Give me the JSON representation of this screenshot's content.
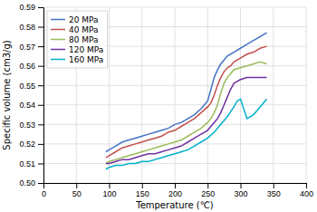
{
  "chart_data": {
    "type": "line",
    "xlabel": "Temperature (℃)",
    "ylabel": "Specific volume (cm3/g)",
    "xlim": [
      0,
      400
    ],
    "ylim": [
      0.5,
      0.59
    ],
    "xticks": [
      0,
      50,
      100,
      150,
      200,
      250,
      300,
      350,
      400
    ],
    "yticks": [
      {
        "value": 0.5,
        "label": "0.50"
      },
      0.51,
      0.52,
      0.53,
      0.54,
      0.55,
      0.56,
      0.57,
      0.58,
      0.59
    ],
    "grid": true,
    "legend": "upper-left",
    "series": [
      {
        "name": "20 MPa",
        "color": "#4472C4",
        "x": [
          95,
          100,
          110,
          120,
          130,
          140,
          150,
          160,
          170,
          180,
          190,
          200,
          210,
          220,
          230,
          240,
          250,
          255,
          260,
          265,
          270,
          275,
          280,
          290,
          300,
          310,
          320,
          330,
          340
        ],
        "values": [
          0.516,
          0.517,
          0.519,
          0.521,
          0.522,
          0.523,
          0.524,
          0.525,
          0.526,
          0.527,
          0.528,
          0.53,
          0.531,
          0.533,
          0.535,
          0.538,
          0.542,
          0.548,
          0.554,
          0.558,
          0.561,
          0.563,
          0.565,
          0.567,
          0.569,
          0.571,
          0.573,
          0.575,
          0.577
        ]
      },
      {
        "name": "40 MPa",
        "color": "#C0504D",
        "x": [
          95,
          100,
          110,
          120,
          130,
          140,
          150,
          160,
          170,
          180,
          190,
          200,
          210,
          220,
          230,
          240,
          250,
          255,
          260,
          265,
          270,
          275,
          280,
          285,
          290,
          300,
          310,
          320,
          330,
          340
        ],
        "values": [
          0.513,
          0.514,
          0.516,
          0.518,
          0.519,
          0.52,
          0.521,
          0.522,
          0.523,
          0.524,
          0.526,
          0.527,
          0.529,
          0.531,
          0.533,
          0.536,
          0.539,
          0.541,
          0.545,
          0.55,
          0.554,
          0.557,
          0.559,
          0.56,
          0.562,
          0.564,
          0.566,
          0.567,
          0.569,
          0.57
        ]
      },
      {
        "name": "80 MPa",
        "color": "#9BBB59",
        "x": [
          95,
          100,
          110,
          120,
          130,
          140,
          150,
          160,
          170,
          180,
          190,
          200,
          210,
          220,
          230,
          240,
          250,
          255,
          260,
          265,
          270,
          275,
          280,
          285,
          290,
          300,
          310,
          320,
          330,
          340
        ],
        "values": [
          0.51,
          0.511,
          0.512,
          0.513,
          0.514,
          0.515,
          0.516,
          0.517,
          0.518,
          0.519,
          0.52,
          0.521,
          0.522,
          0.524,
          0.526,
          0.528,
          0.531,
          0.533,
          0.536,
          0.54,
          0.546,
          0.551,
          0.554,
          0.556,
          0.558,
          0.559,
          0.56,
          0.561,
          0.562,
          0.561
        ]
      },
      {
        "name": "120 MPa",
        "color": "#7030A0",
        "x": [
          95,
          100,
          110,
          120,
          130,
          140,
          150,
          160,
          170,
          180,
          190,
          200,
          210,
          220,
          230,
          240,
          250,
          255,
          260,
          265,
          270,
          275,
          280,
          285,
          290,
          295,
          300,
          310,
          320,
          330,
          340
        ],
        "values": [
          0.51,
          0.51,
          0.511,
          0.512,
          0.512,
          0.513,
          0.514,
          0.515,
          0.515,
          0.516,
          0.517,
          0.518,
          0.519,
          0.521,
          0.523,
          0.525,
          0.527,
          0.529,
          0.531,
          0.533,
          0.536,
          0.54,
          0.544,
          0.548,
          0.551,
          0.552,
          0.553,
          0.554,
          0.554,
          0.554,
          0.554
        ]
      },
      {
        "name": "160 MPa",
        "color": "#00B0C8",
        "x": [
          95,
          100,
          110,
          120,
          130,
          140,
          150,
          160,
          170,
          180,
          190,
          200,
          210,
          220,
          230,
          240,
          250,
          260,
          270,
          280,
          290,
          295,
          300,
          310,
          320,
          330,
          340
        ],
        "values": [
          0.507,
          0.508,
          0.509,
          0.509,
          0.51,
          0.51,
          0.511,
          0.511,
          0.512,
          0.513,
          0.514,
          0.515,
          0.516,
          0.517,
          0.519,
          0.521,
          0.523,
          0.526,
          0.53,
          0.534,
          0.539,
          0.542,
          0.543,
          0.533,
          0.535,
          0.539,
          0.543
        ]
      }
    ]
  }
}
